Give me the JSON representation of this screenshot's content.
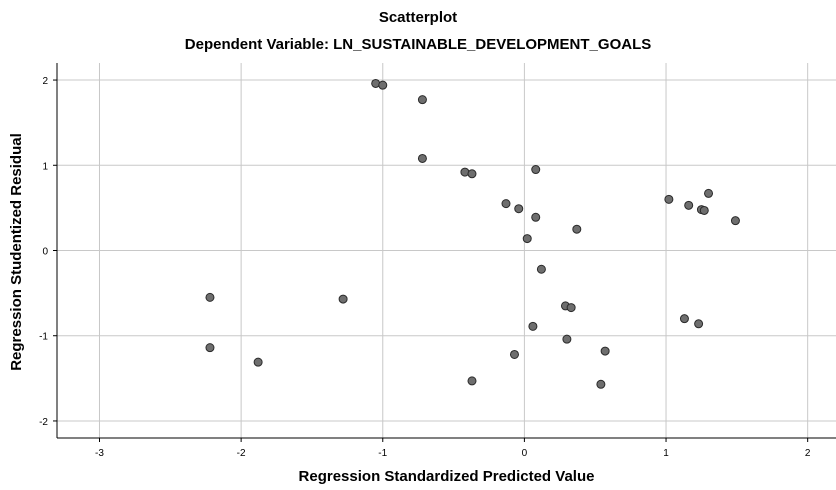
{
  "chart_data": {
    "type": "scatter",
    "title": "Scatterplot",
    "subtitle": "Dependent Variable: LN_SUSTAINABLE_DEVELOPMENT_GOALS",
    "xlabel": "Regression Standardized Predicted Value",
    "ylabel": "Regression Studentized Residual",
    "xlim": [
      -3.3,
      2.2
    ],
    "ylim": [
      -2.2,
      2.2
    ],
    "xticks": [
      -3,
      -2,
      -1,
      0,
      1,
      2
    ],
    "yticks": [
      -2,
      -1,
      0,
      1,
      2
    ],
    "xtick_labels": [
      "-3",
      "-2",
      "-1",
      "0",
      "1",
      "2"
    ],
    "ytick_labels": [
      "-2",
      "-1",
      "0",
      "1",
      "2"
    ],
    "grid": true,
    "colors": {
      "point_fill": "#6e6e6e",
      "point_stroke": "#2a2a2a",
      "grid": "#c8c8c8",
      "axis": "#000000"
    },
    "points": [
      {
        "x": -1.05,
        "y": 1.96
      },
      {
        "x": -1.0,
        "y": 1.94
      },
      {
        "x": -0.72,
        "y": 1.77
      },
      {
        "x": -0.72,
        "y": 1.08
      },
      {
        "x": -0.42,
        "y": 0.92
      },
      {
        "x": -0.37,
        "y": 0.9
      },
      {
        "x": 0.08,
        "y": 0.95
      },
      {
        "x": -0.13,
        "y": 0.55
      },
      {
        "x": -0.04,
        "y": 0.49
      },
      {
        "x": 0.08,
        "y": 0.39
      },
      {
        "x": 0.37,
        "y": 0.25
      },
      {
        "x": 0.02,
        "y": 0.14
      },
      {
        "x": 0.12,
        "y": -0.22
      },
      {
        "x": 0.29,
        "y": -0.65
      },
      {
        "x": 0.33,
        "y": -0.67
      },
      {
        "x": 0.06,
        "y": -0.89
      },
      {
        "x": 0.3,
        "y": -1.04
      },
      {
        "x": 0.57,
        "y": -1.18
      },
      {
        "x": -0.07,
        "y": -1.22
      },
      {
        "x": -0.37,
        "y": -1.53
      },
      {
        "x": 0.54,
        "y": -1.57
      },
      {
        "x": 1.02,
        "y": 0.6
      },
      {
        "x": 1.16,
        "y": 0.53
      },
      {
        "x": 1.25,
        "y": 0.48
      },
      {
        "x": 1.27,
        "y": 0.47
      },
      {
        "x": 1.3,
        "y": 0.67
      },
      {
        "x": 1.49,
        "y": 0.35
      },
      {
        "x": 1.13,
        "y": -0.8
      },
      {
        "x": 1.23,
        "y": -0.86
      },
      {
        "x": -2.22,
        "y": -0.55
      },
      {
        "x": -2.22,
        "y": -1.14
      },
      {
        "x": -1.88,
        "y": -1.31
      },
      {
        "x": -1.28,
        "y": -0.57
      }
    ]
  }
}
